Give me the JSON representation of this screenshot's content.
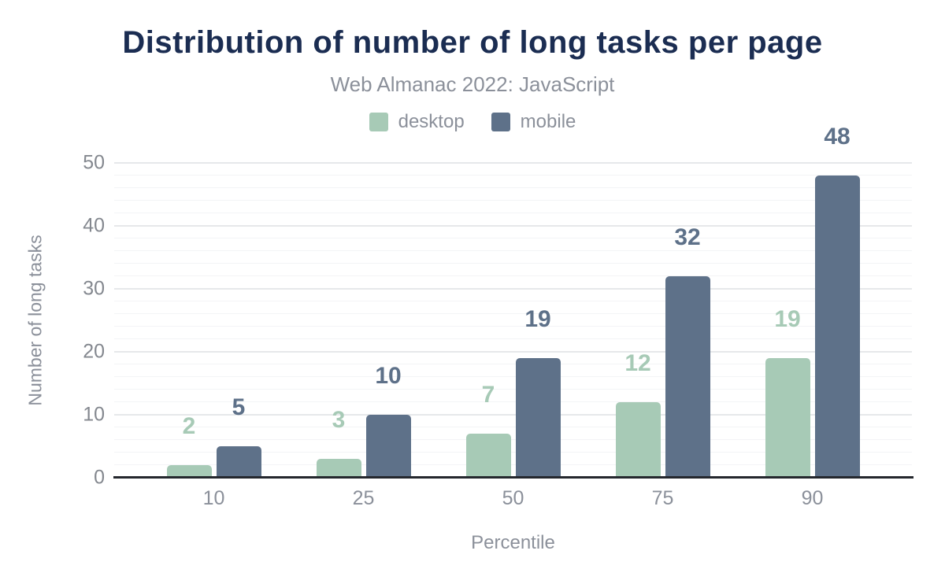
{
  "chart": {
    "title": "Distribution of number of long tasks per page",
    "subtitle": "Web Almanac 2022: JavaScript"
  },
  "chart_data": {
    "type": "bar",
    "title": "Distribution of number of long tasks per page",
    "subtitle": "Web Almanac 2022: JavaScript",
    "categories": [
      "10",
      "25",
      "50",
      "75",
      "90"
    ],
    "series": [
      {
        "name": "desktop",
        "color": "#a7cab6",
        "values": [
          2,
          3,
          7,
          12,
          19
        ]
      },
      {
        "name": "mobile",
        "color": "#5e7189",
        "values": [
          5,
          10,
          19,
          32,
          48
        ]
      }
    ],
    "xlabel": "Percentile",
    "ylabel": "Number of long tasks",
    "ylim": [
      0,
      50
    ],
    "yticks": [
      0,
      10,
      20,
      30,
      40,
      50
    ],
    "minor_grid_step": 2,
    "grid": true,
    "legend_position": "top",
    "value_labels": true
  },
  "colors": {
    "title": "#1b2d52",
    "text_muted": "#8b909a",
    "axis": "#24272d",
    "grid_major": "#e6e8ea",
    "grid_minor": "#f3f4f6"
  }
}
